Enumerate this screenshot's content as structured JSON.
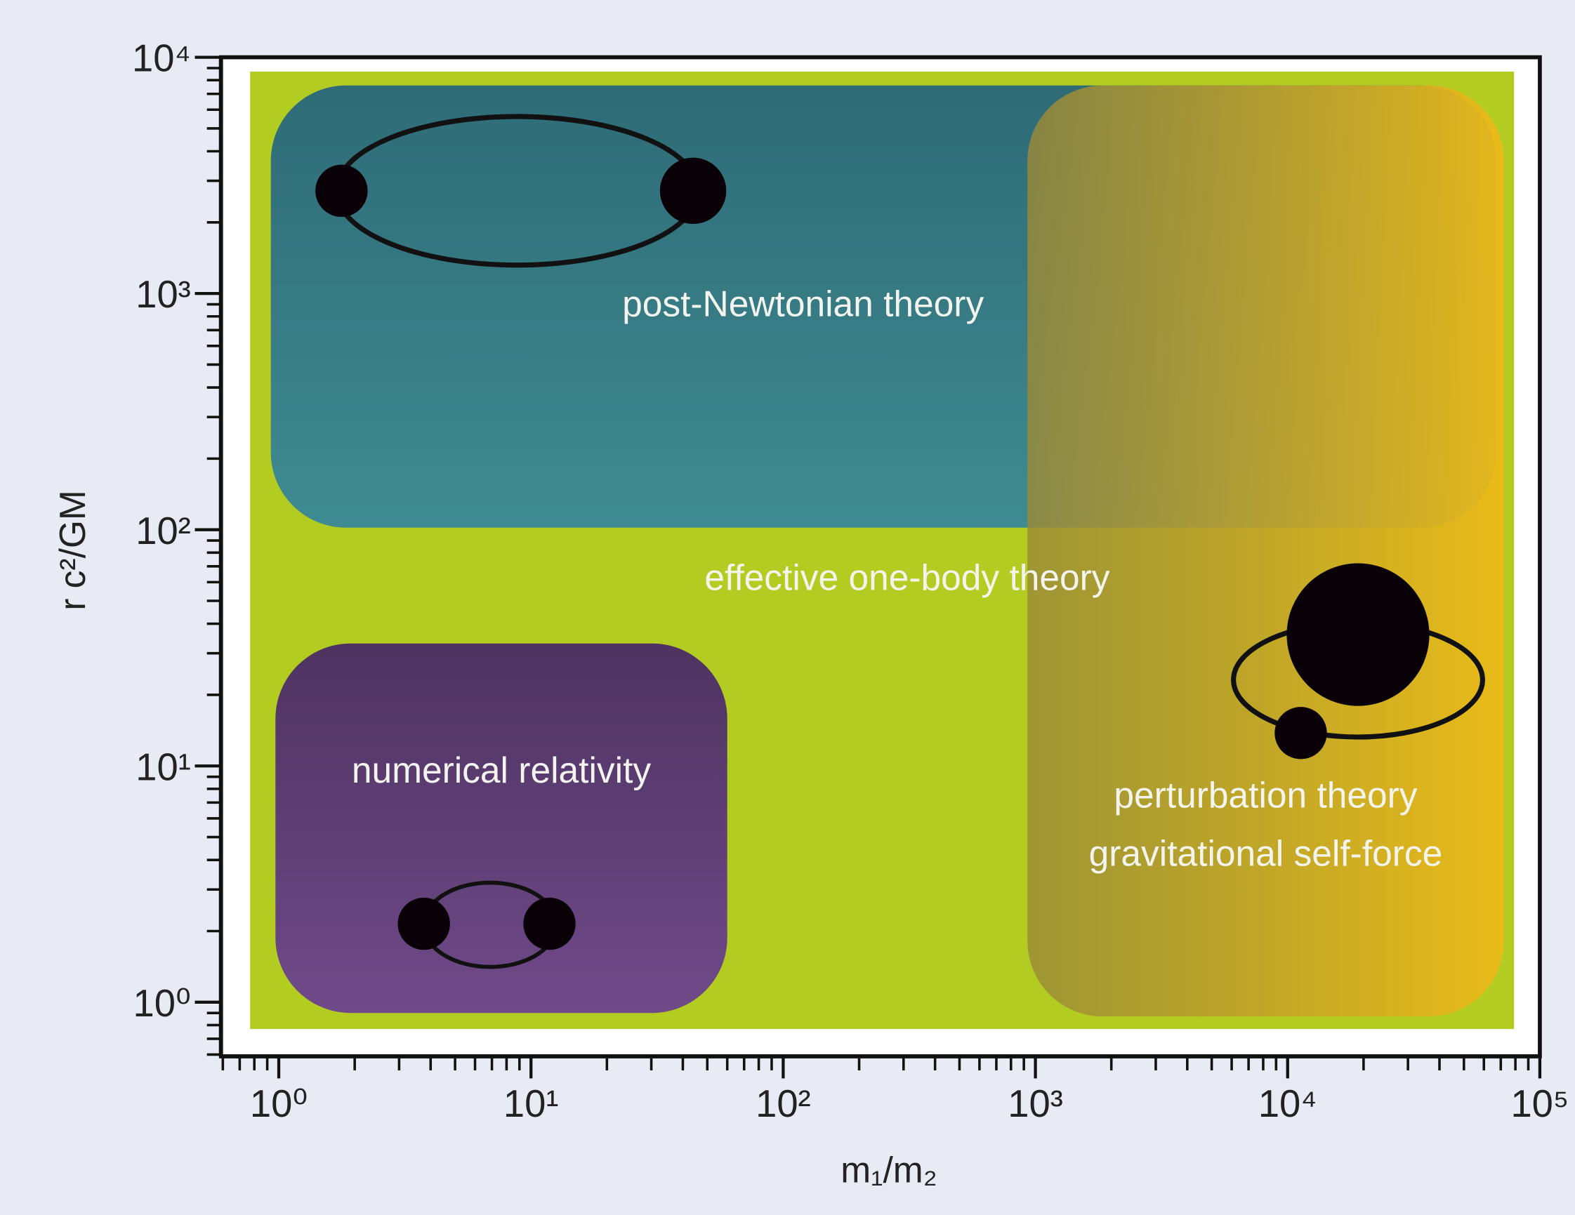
{
  "chart_data": {
    "type": "regions",
    "xlabel": "m₁/m₂",
    "ylabel": "r c²/GM",
    "xscale": "log",
    "yscale": "log",
    "xlim": [
      0.59,
      100000
    ],
    "ylim": [
      0.59,
      10000
    ],
    "xticks": [
      {
        "value": 1,
        "label": "10⁰"
      },
      {
        "value": 10,
        "label": "10¹"
      },
      {
        "value": 100,
        "label": "10²"
      },
      {
        "value": 1000,
        "label": "10³"
      },
      {
        "value": 10000,
        "label": "10⁴"
      },
      {
        "value": 100000,
        "label": "10⁵"
      }
    ],
    "yticks": [
      {
        "value": 1,
        "label": "10⁰"
      },
      {
        "value": 10,
        "label": "10¹"
      },
      {
        "value": 100,
        "label": "10²"
      },
      {
        "value": 1000,
        "label": "10³"
      },
      {
        "value": 10000,
        "label": "10⁴"
      }
    ],
    "minor_ticks": true,
    "regions": [
      {
        "labels": [
          "effective one-body theory"
        ],
        "x_range": [
          0.77,
          79000
        ],
        "y_range": [
          0.77,
          8700
        ],
        "color": "#b3cc22"
      },
      {
        "labels": [
          "post-Newtonian theory"
        ],
        "x_range": [
          0.93,
          67000
        ],
        "y_range": [
          102,
          7600
        ],
        "gradient": [
          "#2e6b77",
          "#3f8b92"
        ],
        "direction": "vertical"
      },
      {
        "labels": [
          "numerical relativity"
        ],
        "x_range": [
          0.97,
          60
        ],
        "y_range": [
          0.9,
          33
        ],
        "gradient": [
          "#4e3361",
          "#6f4a89"
        ],
        "direction": "vertical"
      },
      {
        "labels": [
          "perturbation theory",
          "gravitational self-force"
        ],
        "x_range": [
          930,
          72000
        ],
        "y_range": [
          0.87,
          7600
        ],
        "gradient": [
          "#9a8a38",
          "#ecba18"
        ],
        "direction": "horizontal"
      }
    ]
  }
}
